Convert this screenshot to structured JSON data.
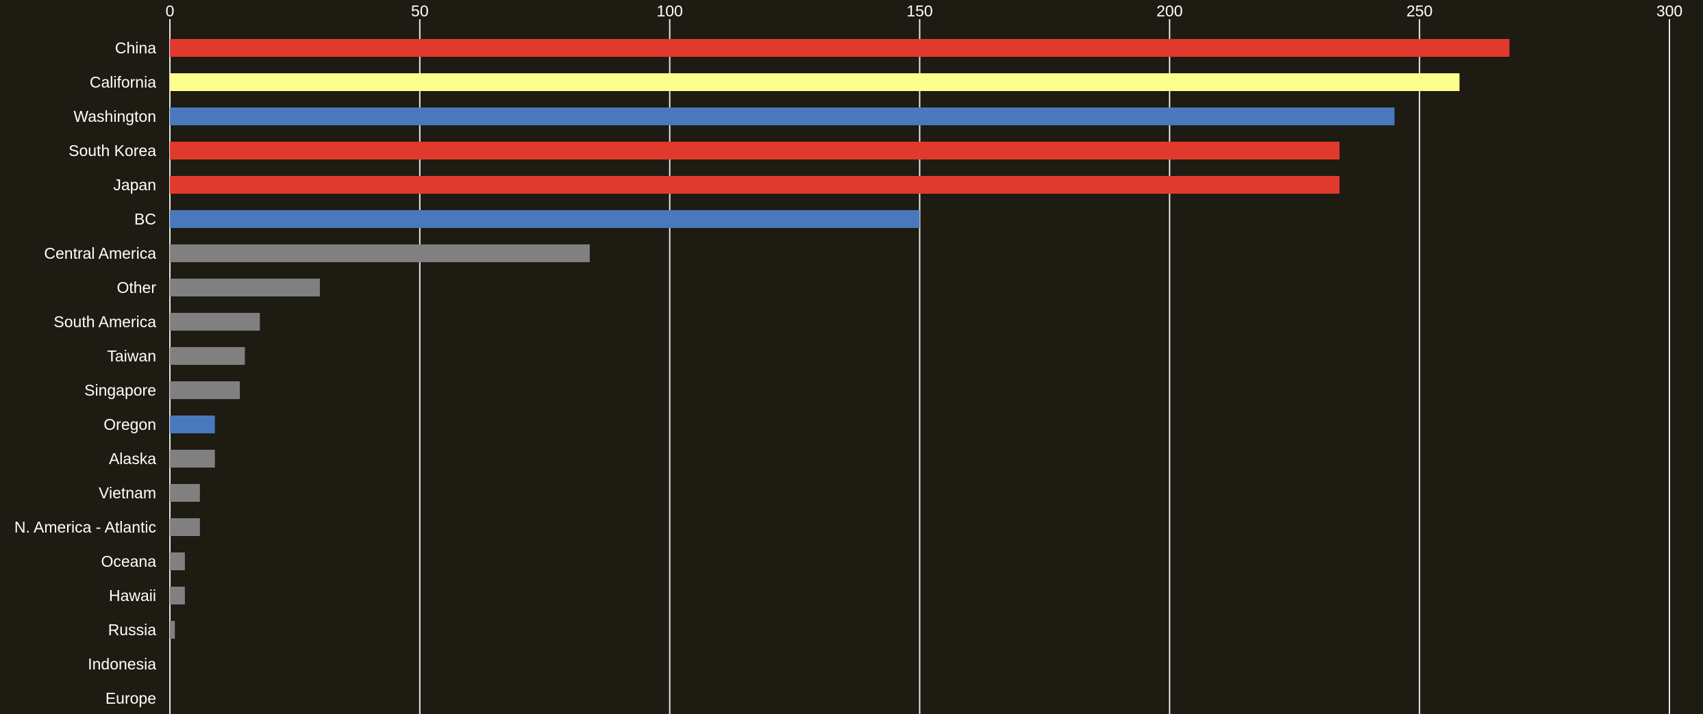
{
  "chart_data": {
    "type": "bar",
    "orientation": "horizontal",
    "categories": [
      "China",
      "California",
      "Washington",
      "South Korea",
      "Japan",
      "BC",
      "Central America",
      "Other",
      "South America",
      "Taiwan",
      "Singapore",
      "Oregon",
      "Alaska",
      "Vietnam",
      "N. America - Atlantic",
      "Oceana",
      "Hawaii",
      "Russia",
      "Indonesia",
      "Europe"
    ],
    "values": [
      268,
      258,
      245,
      234,
      234,
      150,
      84,
      30,
      18,
      15,
      14,
      9,
      9,
      6,
      6,
      3,
      3,
      1,
      0,
      0
    ],
    "bar_colors": [
      "#e03a2e",
      "#fefe8c",
      "#4a78bd",
      "#e03a2e",
      "#e03a2e",
      "#4a78bd",
      "#808080",
      "#808080",
      "#808080",
      "#808080",
      "#808080",
      "#4a78bd",
      "#808080",
      "#808080",
      "#808080",
      "#808080",
      "#808080",
      "#808080",
      "#808080",
      "#808080"
    ],
    "xlim": [
      0,
      300
    ],
    "x_ticks": [
      "0",
      "50",
      "100",
      "150",
      "200",
      "250",
      "300"
    ],
    "x_tick_values": [
      0,
      50,
      100,
      150,
      200,
      250,
      300
    ],
    "x_axis_position": "top",
    "grid": true,
    "title": "",
    "xlabel": "",
    "ylabel": "",
    "background_color": "#1e1b12",
    "grid_color": "#e6e6e6",
    "text_color": "#ffffff"
  }
}
